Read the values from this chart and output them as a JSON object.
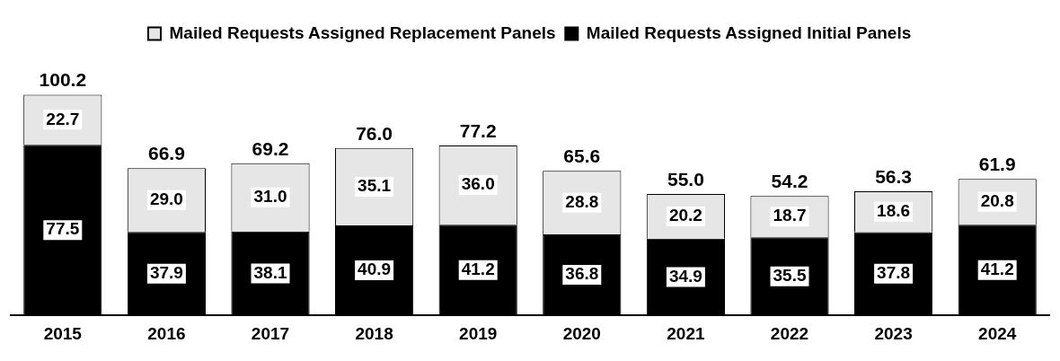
{
  "chart_data": {
    "type": "bar",
    "stacked": true,
    "categories": [
      "2015",
      "2016",
      "2017",
      "2018",
      "2019",
      "2020",
      "2021",
      "2022",
      "2023",
      "2024"
    ],
    "series": [
      {
        "name": "Mailed Requests Assigned Initial Panels",
        "color": "#000000",
        "values": [
          77.5,
          37.9,
          38.1,
          40.9,
          41.2,
          36.8,
          34.9,
          35.5,
          37.8,
          41.2
        ],
        "value_labels": [
          "77.5",
          "37.9",
          "38.1",
          "40.9",
          "41.2",
          "36.8",
          "34.9",
          "35.5",
          "37.8",
          "41.2"
        ]
      },
      {
        "name": "Mailed Requests Assigned Replacement Panels",
        "color": "#e6e6e6",
        "values": [
          22.7,
          29.0,
          31.0,
          35.1,
          36.0,
          28.8,
          20.2,
          18.7,
          18.6,
          20.8
        ],
        "value_labels": [
          "22.7",
          "29.0",
          "31.0",
          "35.1",
          "36.0",
          "28.8",
          "20.2",
          "18.7",
          "18.6",
          "20.8"
        ]
      }
    ],
    "totals": [
      "100.2",
      "66.9",
      "69.2",
      "76.0",
      "77.2",
      "65.6",
      "55.0",
      "54.2",
      "56.3",
      "61.9"
    ],
    "legend": "top",
    "grid": false
  }
}
